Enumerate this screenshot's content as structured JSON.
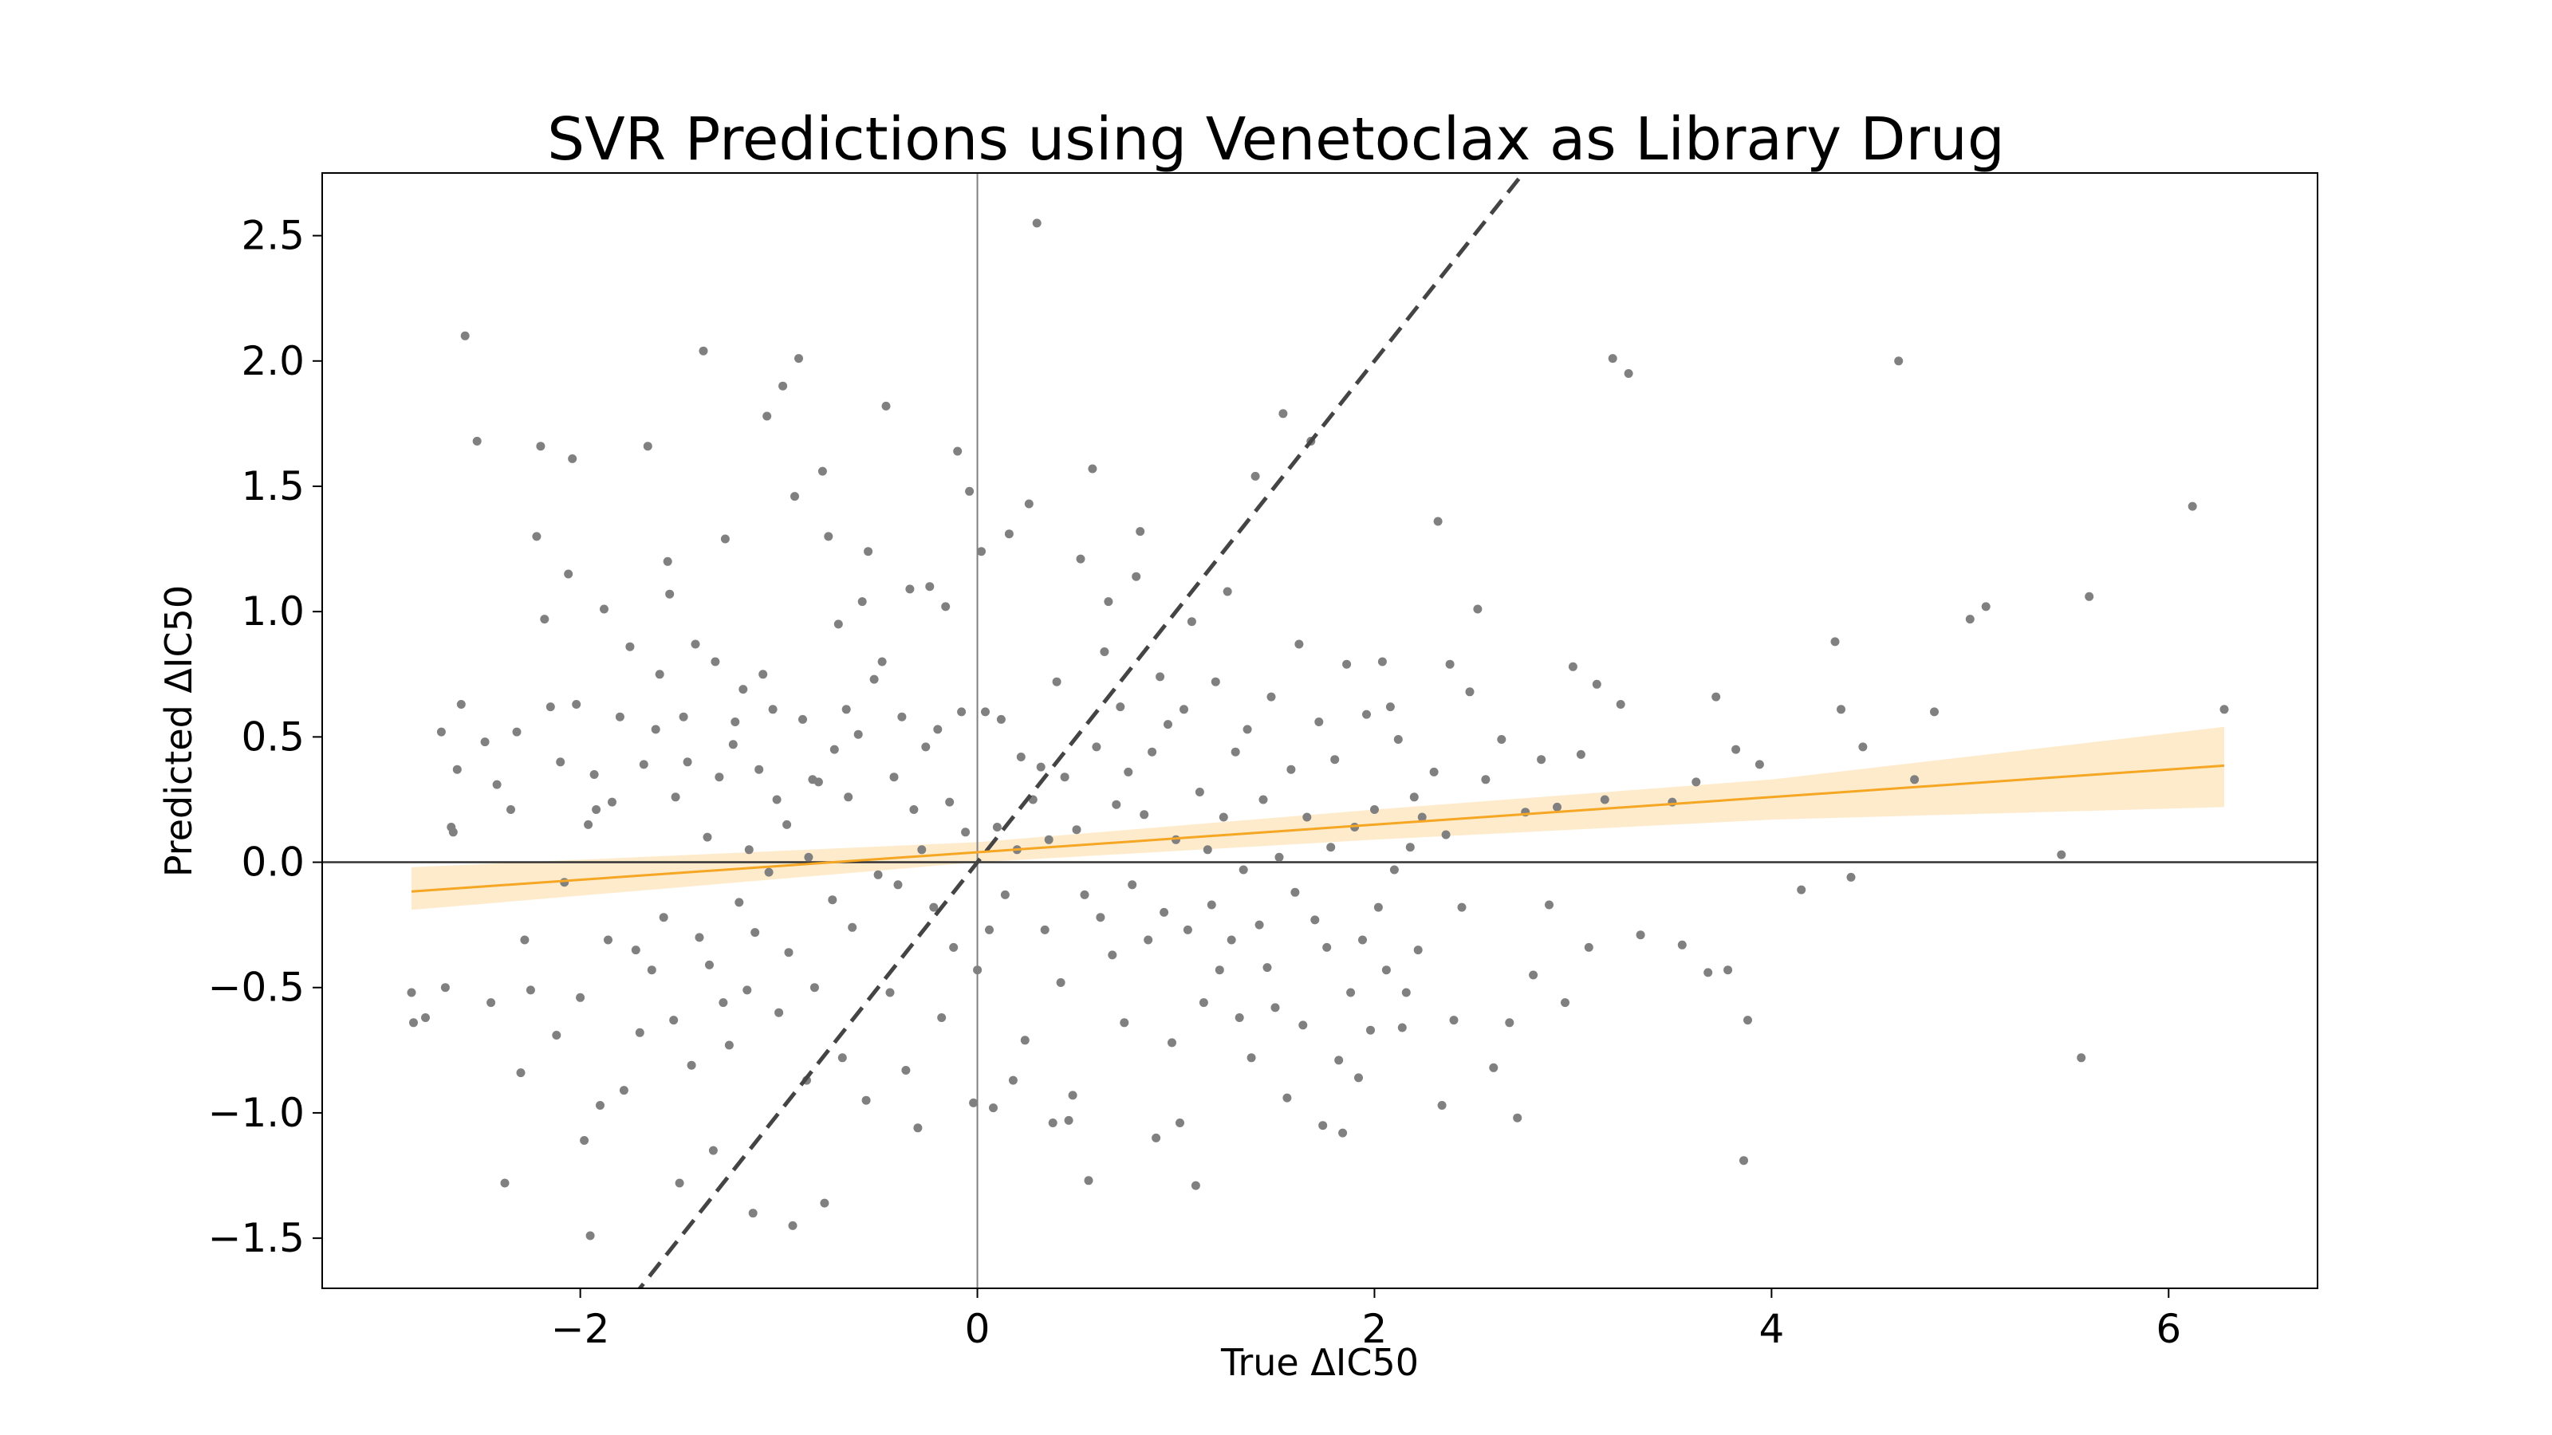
{
  "chart_data": {
    "type": "scatter",
    "title": "SVR Predictions using Venetoclax as Library Drug",
    "xlabel": "True ΔIC50",
    "ylabel": "Predicted ΔIC50",
    "xlim": [
      -3.3,
      6.75
    ],
    "ylim": [
      -1.7,
      2.75
    ],
    "xticks": [
      -2,
      0,
      2,
      4,
      6
    ],
    "xtick_labels": [
      "−2",
      "0",
      "2",
      "4",
      "6"
    ],
    "yticks": [
      -1.5,
      -1.0,
      -0.5,
      0.0,
      0.5,
      1.0,
      1.5,
      2.0,
      2.5
    ],
    "ytick_labels": [
      "−1.5",
      "−1.0",
      "−0.5",
      "0.0",
      "0.5",
      "1.0",
      "1.5",
      "2.0",
      "2.5"
    ],
    "grid": false,
    "reference_lines": {
      "x_zero": true,
      "y_zero": true,
      "identity_dashed": true
    },
    "regression": {
      "x_range": [
        -2.85,
        6.28
      ],
      "intercept": 0.04,
      "slope": 0.055,
      "ci_lower": [
        [
          -2.85,
          -0.19
        ],
        [
          0.0,
          0.0
        ],
        [
          2.0,
          0.09
        ],
        [
          4.0,
          0.17
        ],
        [
          6.28,
          0.22
        ]
      ],
      "ci_upper": [
        [
          -2.85,
          -0.02
        ],
        [
          0.0,
          0.08
        ],
        [
          2.0,
          0.21
        ],
        [
          4.0,
          0.33
        ],
        [
          6.28,
          0.54
        ]
      ]
    },
    "colors": {
      "points": "#808080",
      "regression": "#f5a623",
      "band": "#fdebcc",
      "identity": "#444444",
      "axes": "#000000"
    },
    "points": [
      [
        -2.85,
        -0.52
      ],
      [
        -2.84,
        -0.64
      ],
      [
        -2.78,
        -0.62
      ],
      [
        -2.7,
        0.52
      ],
      [
        -2.68,
        -0.5
      ],
      [
        -2.65,
        0.14
      ],
      [
        -2.64,
        0.12
      ],
      [
        -2.62,
        0.37
      ],
      [
        -2.6,
        0.63
      ],
      [
        -2.58,
        2.1
      ],
      [
        -2.52,
        1.68
      ],
      [
        -2.48,
        0.48
      ],
      [
        -2.45,
        -0.56
      ],
      [
        -2.42,
        0.31
      ],
      [
        -2.38,
        -1.28
      ],
      [
        -2.35,
        0.21
      ],
      [
        -2.32,
        0.52
      ],
      [
        -2.3,
        -0.84
      ],
      [
        -2.28,
        -0.31
      ],
      [
        -2.25,
        -0.51
      ],
      [
        -2.22,
        1.3
      ],
      [
        -2.2,
        1.66
      ],
      [
        -2.18,
        0.97
      ],
      [
        -2.15,
        0.62
      ],
      [
        -2.12,
        -0.69
      ],
      [
        -2.1,
        0.4
      ],
      [
        -2.08,
        -0.08
      ],
      [
        -2.06,
        1.15
      ],
      [
        -2.04,
        1.61
      ],
      [
        -2.02,
        0.63
      ],
      [
        -2.0,
        -0.54
      ],
      [
        -1.98,
        -1.11
      ],
      [
        -1.96,
        0.15
      ],
      [
        -1.95,
        -1.49
      ],
      [
        -1.93,
        0.35
      ],
      [
        -1.92,
        0.21
      ],
      [
        -1.9,
        -0.97
      ],
      [
        -1.88,
        1.01
      ],
      [
        -1.86,
        -0.31
      ],
      [
        -1.84,
        0.24
      ],
      [
        -1.8,
        0.58
      ],
      [
        -1.78,
        -0.91
      ],
      [
        -1.75,
        0.86
      ],
      [
        -1.72,
        -0.35
      ],
      [
        -1.7,
        -0.68
      ],
      [
        -1.68,
        0.39
      ],
      [
        -1.66,
        1.66
      ],
      [
        -1.64,
        -0.43
      ],
      [
        -1.62,
        0.53
      ],
      [
        -1.6,
        0.75
      ],
      [
        -1.58,
        -0.22
      ],
      [
        -1.56,
        1.2
      ],
      [
        -1.55,
        1.07
      ],
      [
        -1.53,
        -0.63
      ],
      [
        -1.52,
        0.26
      ],
      [
        -1.5,
        -1.28
      ],
      [
        -1.48,
        0.58
      ],
      [
        -1.46,
        0.4
      ],
      [
        -1.44,
        -0.81
      ],
      [
        -1.42,
        0.87
      ],
      [
        -1.4,
        -0.3
      ],
      [
        -1.38,
        2.04
      ],
      [
        -1.36,
        0.1
      ],
      [
        -1.35,
        -0.41
      ],
      [
        -1.33,
        -1.15
      ],
      [
        -1.32,
        0.8
      ],
      [
        -1.3,
        0.34
      ],
      [
        -1.28,
        -0.56
      ],
      [
        -1.27,
        1.29
      ],
      [
        -1.25,
        -0.73
      ],
      [
        -1.23,
        0.47
      ],
      [
        -1.22,
        0.56
      ],
      [
        -1.2,
        -0.16
      ],
      [
        -1.18,
        0.69
      ],
      [
        -1.16,
        -0.51
      ],
      [
        -1.15,
        0.05
      ],
      [
        -1.13,
        -1.4
      ],
      [
        -1.12,
        -0.28
      ],
      [
        -1.1,
        0.37
      ],
      [
        -1.08,
        0.75
      ],
      [
        -1.06,
        1.78
      ],
      [
        -1.05,
        -0.04
      ],
      [
        -1.03,
        0.61
      ],
      [
        -1.01,
        0.25
      ],
      [
        -1.0,
        -0.6
      ],
      [
        -0.98,
        1.9
      ],
      [
        -0.96,
        0.15
      ],
      [
        -0.95,
        -0.36
      ],
      [
        -0.93,
        -1.45
      ],
      [
        -0.92,
        1.46
      ],
      [
        -0.9,
        2.01
      ],
      [
        -0.88,
        0.57
      ],
      [
        -0.86,
        -0.87
      ],
      [
        -0.85,
        0.02
      ],
      [
        -0.83,
        0.33
      ],
      [
        -0.82,
        -0.5
      ],
      [
        -0.8,
        0.32
      ],
      [
        -0.78,
        1.56
      ],
      [
        -0.77,
        -1.36
      ],
      [
        -0.75,
        1.3
      ],
      [
        -0.73,
        -0.15
      ],
      [
        -0.72,
        0.45
      ],
      [
        -0.7,
        0.95
      ],
      [
        -0.68,
        -0.78
      ],
      [
        -0.66,
        0.61
      ],
      [
        -0.65,
        0.26
      ],
      [
        -0.63,
        -0.26
      ],
      [
        -0.6,
        0.51
      ],
      [
        -0.58,
        1.04
      ],
      [
        -0.56,
        -0.95
      ],
      [
        -0.55,
        1.24
      ],
      [
        -0.52,
        0.73
      ],
      [
        -0.5,
        -0.05
      ],
      [
        -0.48,
        0.8
      ],
      [
        -0.46,
        1.82
      ],
      [
        -0.44,
        -0.52
      ],
      [
        -0.42,
        0.34
      ],
      [
        -0.4,
        -0.09
      ],
      [
        -0.38,
        0.58
      ],
      [
        -0.36,
        -0.83
      ],
      [
        -0.34,
        1.09
      ],
      [
        -0.32,
        0.21
      ],
      [
        -0.3,
        -1.06
      ],
      [
        -0.28,
        0.05
      ],
      [
        -0.26,
        0.46
      ],
      [
        -0.24,
        1.1
      ],
      [
        -0.22,
        -0.18
      ],
      [
        -0.2,
        0.53
      ],
      [
        -0.18,
        -0.62
      ],
      [
        -0.16,
        1.02
      ],
      [
        -0.14,
        0.24
      ],
      [
        -0.12,
        -0.34
      ],
      [
        -0.1,
        1.64
      ],
      [
        -0.08,
        0.6
      ],
      [
        -0.06,
        0.12
      ],
      [
        -0.04,
        1.48
      ],
      [
        -0.02,
        -0.96
      ],
      [
        0.0,
        -0.43
      ],
      [
        0.02,
        1.24
      ],
      [
        0.04,
        0.6
      ],
      [
        0.06,
        -0.27
      ],
      [
        0.08,
        -0.98
      ],
      [
        0.1,
        0.14
      ],
      [
        0.12,
        0.57
      ],
      [
        0.14,
        -0.13
      ],
      [
        0.16,
        1.31
      ],
      [
        0.18,
        -0.87
      ],
      [
        0.2,
        0.05
      ],
      [
        0.22,
        0.42
      ],
      [
        0.24,
        -0.71
      ],
      [
        0.26,
        1.43
      ],
      [
        0.28,
        0.25
      ],
      [
        0.3,
        2.55
      ],
      [
        0.32,
        0.38
      ],
      [
        0.34,
        -0.27
      ],
      [
        0.36,
        0.09
      ],
      [
        0.38,
        -1.04
      ],
      [
        0.4,
        0.72
      ],
      [
        0.42,
        -0.48
      ],
      [
        0.44,
        0.34
      ],
      [
        0.46,
        -1.03
      ],
      [
        0.48,
        -0.93
      ],
      [
        0.5,
        0.13
      ],
      [
        0.52,
        1.21
      ],
      [
        0.54,
        -0.13
      ],
      [
        0.56,
        -1.27
      ],
      [
        0.58,
        1.57
      ],
      [
        0.6,
        0.46
      ],
      [
        0.62,
        -0.22
      ],
      [
        0.64,
        0.84
      ],
      [
        0.66,
        1.04
      ],
      [
        0.68,
        -0.37
      ],
      [
        0.7,
        0.23
      ],
      [
        0.72,
        0.62
      ],
      [
        0.74,
        -0.64
      ],
      [
        0.76,
        0.36
      ],
      [
        0.78,
        -0.09
      ],
      [
        0.8,
        1.14
      ],
      [
        0.82,
        1.32
      ],
      [
        0.84,
        0.19
      ],
      [
        0.86,
        -0.31
      ],
      [
        0.88,
        0.44
      ],
      [
        0.9,
        -1.1
      ],
      [
        0.92,
        0.74
      ],
      [
        0.94,
        -0.2
      ],
      [
        0.96,
        0.55
      ],
      [
        0.98,
        -0.72
      ],
      [
        1.0,
        0.09
      ],
      [
        1.02,
        -1.04
      ],
      [
        1.04,
        0.61
      ],
      [
        1.06,
        -0.27
      ],
      [
        1.08,
        0.96
      ],
      [
        1.1,
        -1.29
      ],
      [
        1.12,
        0.28
      ],
      [
        1.14,
        -0.56
      ],
      [
        1.16,
        0.05
      ],
      [
        1.18,
        -0.17
      ],
      [
        1.2,
        0.72
      ],
      [
        1.22,
        -0.43
      ],
      [
        1.24,
        0.18
      ],
      [
        1.26,
        1.08
      ],
      [
        1.28,
        -0.31
      ],
      [
        1.3,
        0.44
      ],
      [
        1.32,
        -0.62
      ],
      [
        1.34,
        -0.03
      ],
      [
        1.36,
        0.53
      ],
      [
        1.38,
        -0.78
      ],
      [
        1.4,
        1.54
      ],
      [
        1.42,
        -0.25
      ],
      [
        1.44,
        0.25
      ],
      [
        1.46,
        -0.42
      ],
      [
        1.48,
        0.66
      ],
      [
        1.5,
        -0.58
      ],
      [
        1.52,
        0.02
      ],
      [
        1.54,
        1.79
      ],
      [
        1.56,
        -0.94
      ],
      [
        1.58,
        0.37
      ],
      [
        1.6,
        -0.12
      ],
      [
        1.62,
        0.87
      ],
      [
        1.64,
        -0.65
      ],
      [
        1.66,
        0.18
      ],
      [
        1.68,
        1.68
      ],
      [
        1.7,
        -0.23
      ],
      [
        1.72,
        0.56
      ],
      [
        1.74,
        -1.05
      ],
      [
        1.76,
        -0.34
      ],
      [
        1.78,
        0.06
      ],
      [
        1.8,
        0.41
      ],
      [
        1.82,
        -0.79
      ],
      [
        1.84,
        -1.08
      ],
      [
        1.86,
        0.79
      ],
      [
        1.88,
        -0.52
      ],
      [
        1.9,
        0.14
      ],
      [
        1.92,
        -0.86
      ],
      [
        1.94,
        -0.31
      ],
      [
        1.96,
        0.59
      ],
      [
        1.98,
        -0.67
      ],
      [
        2.0,
        0.21
      ],
      [
        2.02,
        -0.18
      ],
      [
        2.04,
        0.8
      ],
      [
        2.06,
        -0.43
      ],
      [
        2.08,
        0.62
      ],
      [
        2.1,
        -0.03
      ],
      [
        2.12,
        0.49
      ],
      [
        2.14,
        -0.66
      ],
      [
        2.16,
        -0.52
      ],
      [
        2.18,
        0.06
      ],
      [
        2.2,
        0.26
      ],
      [
        2.22,
        -0.35
      ],
      [
        2.24,
        0.18
      ],
      [
        2.3,
        0.36
      ],
      [
        2.32,
        1.36
      ],
      [
        2.34,
        -0.97
      ],
      [
        2.36,
        0.11
      ],
      [
        2.38,
        0.79
      ],
      [
        2.4,
        -0.63
      ],
      [
        2.44,
        -0.18
      ],
      [
        2.48,
        0.68
      ],
      [
        2.52,
        1.01
      ],
      [
        2.56,
        0.33
      ],
      [
        2.6,
        -0.82
      ],
      [
        2.64,
        0.49
      ],
      [
        2.68,
        -0.64
      ],
      [
        2.72,
        -1.02
      ],
      [
        2.76,
        0.2
      ],
      [
        2.8,
        -0.45
      ],
      [
        2.84,
        0.41
      ],
      [
        2.88,
        -0.17
      ],
      [
        2.92,
        0.22
      ],
      [
        2.96,
        -0.56
      ],
      [
        3.0,
        0.78
      ],
      [
        3.04,
        0.43
      ],
      [
        3.08,
        -0.34
      ],
      [
        3.12,
        0.71
      ],
      [
        3.16,
        0.25
      ],
      [
        3.2,
        2.01
      ],
      [
        3.24,
        0.63
      ],
      [
        3.28,
        1.95
      ],
      [
        3.34,
        -0.29
      ],
      [
        3.5,
        0.24
      ],
      [
        3.55,
        -0.33
      ],
      [
        3.62,
        0.32
      ],
      [
        3.68,
        -0.44
      ],
      [
        3.72,
        0.66
      ],
      [
        3.78,
        -0.43
      ],
      [
        3.82,
        0.45
      ],
      [
        3.88,
        -0.63
      ],
      [
        3.94,
        0.39
      ],
      [
        3.86,
        -1.19
      ],
      [
        4.15,
        -0.11
      ],
      [
        4.32,
        0.88
      ],
      [
        4.35,
        0.61
      ],
      [
        4.4,
        -0.06
      ],
      [
        4.46,
        0.46
      ],
      [
        4.64,
        2.0
      ],
      [
        4.72,
        0.33
      ],
      [
        4.82,
        0.6
      ],
      [
        5.0,
        0.97
      ],
      [
        5.08,
        1.02
      ],
      [
        5.46,
        0.03
      ],
      [
        5.56,
        -0.78
      ],
      [
        5.6,
        1.06
      ],
      [
        6.12,
        1.42
      ],
      [
        6.28,
        0.61
      ]
    ]
  }
}
